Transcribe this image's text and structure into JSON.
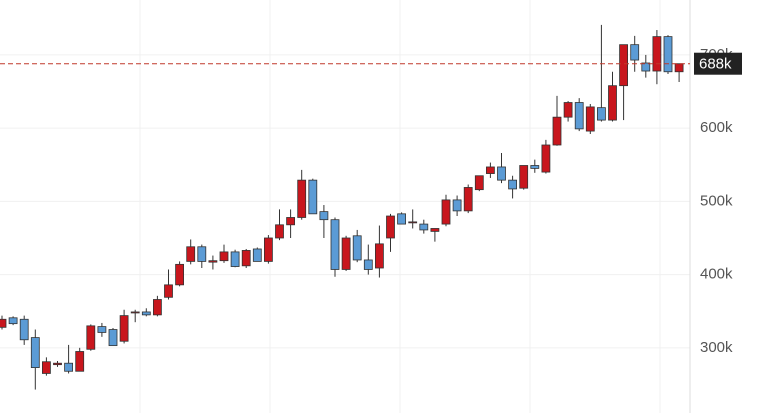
{
  "chart_data": {
    "type": "candlestick",
    "up_color": "#c8161d",
    "down_color": "#5b9bd5",
    "ylim": [
      211,
      775
    ],
    "yticks": [
      {
        "value": 300,
        "label": "300k"
      },
      {
        "value": 400,
        "label": "400k"
      },
      {
        "value": 500,
        "label": "500k"
      },
      {
        "value": 600,
        "label": "600k"
      },
      {
        "value": 700,
        "label": "700k"
      }
    ],
    "grid": true,
    "last_price": {
      "value": 688,
      "label": "688k"
    },
    "ohlc": [
      [
        328,
        344,
        325,
        339
      ],
      [
        341,
        343,
        331,
        333
      ],
      [
        339,
        344,
        304,
        311
      ],
      [
        314,
        325,
        243,
        273
      ],
      [
        265,
        287,
        262,
        281
      ],
      [
        277,
        282,
        274,
        279
      ],
      [
        279,
        304,
        265,
        268
      ],
      [
        268,
        300,
        268,
        295
      ],
      [
        298,
        332,
        296,
        330
      ],
      [
        329,
        334,
        315,
        321
      ],
      [
        325,
        327,
        303,
        303
      ],
      [
        309,
        352,
        306,
        344
      ],
      [
        348,
        352,
        335,
        349
      ],
      [
        349,
        354,
        343,
        345
      ],
      [
        345,
        371,
        343,
        366
      ],
      [
        369,
        407,
        366,
        386
      ],
      [
        386,
        418,
        384,
        414
      ],
      [
        418,
        448,
        414,
        438
      ],
      [
        438,
        441,
        409,
        418
      ],
      [
        417,
        426,
        407,
        419
      ],
      [
        419,
        441,
        416,
        431
      ],
      [
        431,
        434,
        410,
        411
      ],
      [
        412,
        435,
        409,
        433
      ],
      [
        435,
        437,
        418,
        418
      ],
      [
        418,
        454,
        415,
        450
      ],
      [
        450,
        489,
        447,
        468
      ],
      [
        468,
        489,
        450,
        478
      ],
      [
        478,
        543,
        475,
        529
      ],
      [
        529,
        531,
        483,
        483
      ],
      [
        486,
        495,
        450,
        475
      ],
      [
        475,
        478,
        397,
        407
      ],
      [
        407,
        453,
        405,
        450
      ],
      [
        453,
        461,
        417,
        420
      ],
      [
        420,
        441,
        400,
        407
      ],
      [
        409,
        467,
        396,
        442
      ],
      [
        450,
        483,
        431,
        480
      ],
      [
        483,
        485,
        469,
        469
      ],
      [
        472,
        489,
        463,
        472
      ],
      [
        469,
        475,
        456,
        461
      ],
      [
        459,
        463,
        445,
        463
      ],
      [
        469,
        509,
        466,
        502
      ],
      [
        502,
        508,
        480,
        487
      ],
      [
        487,
        523,
        484,
        519
      ],
      [
        516,
        535,
        514,
        535
      ],
      [
        538,
        553,
        532,
        547
      ],
      [
        547,
        566,
        525,
        529
      ],
      [
        529,
        535,
        504,
        517
      ],
      [
        518,
        549,
        516,
        549
      ],
      [
        549,
        557,
        539,
        545
      ],
      [
        540,
        584,
        538,
        577
      ],
      [
        577,
        644,
        576,
        615
      ],
      [
        615,
        637,
        609,
        635
      ],
      [
        635,
        641,
        596,
        599
      ],
      [
        596,
        633,
        592,
        629
      ],
      [
        628,
        741,
        609,
        611
      ],
      [
        611,
        677,
        609,
        658
      ],
      [
        658,
        714,
        611,
        714
      ],
      [
        714,
        726,
        677,
        693
      ],
      [
        689,
        700,
        669,
        678
      ],
      [
        678,
        734,
        660,
        725
      ],
      [
        725,
        727,
        674,
        677
      ],
      [
        677,
        688,
        663,
        688
      ]
    ]
  }
}
